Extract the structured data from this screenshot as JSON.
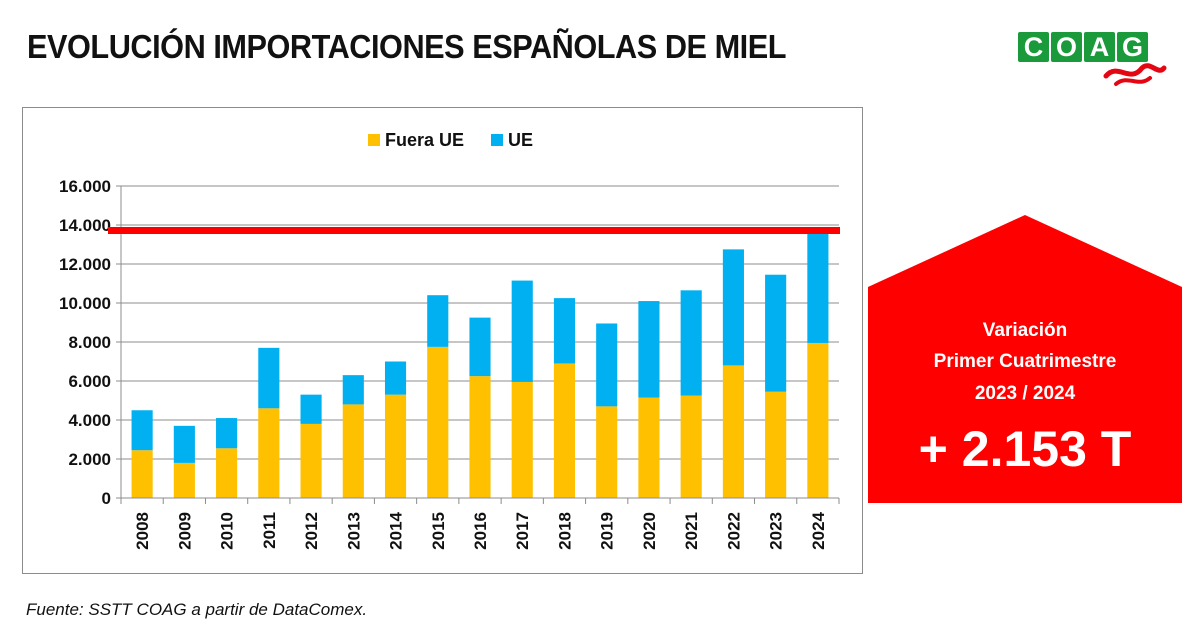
{
  "title": "EVOLUCIÓN IMPORTACIONES ESPAÑOLAS DE MIEL",
  "logo": {
    "text": "COAG",
    "letters": [
      "C",
      "O",
      "A",
      "G"
    ],
    "icon": "coag-logo-icon",
    "color": "#1a9a3a",
    "accent": "#e30613"
  },
  "source": "Fuente: SSTT COAG a partir de DataComex.",
  "callout": {
    "line1": "Variación",
    "line2": "Primer Cuatrimestre",
    "line3": "2023 / 2024",
    "value": "+ 2.153 T",
    "color": "#ff0000"
  },
  "chart_data": {
    "type": "bar",
    "stacked": true,
    "categories": [
      "2008",
      "2009",
      "2010",
      "2011",
      "2012",
      "2013",
      "2014",
      "2015",
      "2016",
      "2017",
      "2018",
      "2019",
      "2020",
      "2021",
      "2022",
      "2023",
      "2024"
    ],
    "series": [
      {
        "name": "Fuera UE",
        "color": "#ffc000",
        "values": [
          2450,
          1800,
          2550,
          4600,
          3800,
          4800,
          5300,
          7750,
          6250,
          5950,
          6900,
          4700,
          5150,
          5250,
          6800,
          5450,
          7950
        ]
      },
      {
        "name": "UE",
        "color": "#00b0f0",
        "values": [
          2050,
          1900,
          1550,
          3100,
          1500,
          1500,
          1700,
          2650,
          3000,
          5200,
          3350,
          4250,
          4950,
          5400,
          5950,
          6000,
          5600
        ]
      }
    ],
    "ylim": [
      0,
      16000
    ],
    "yticks": [
      0,
      2000,
      4000,
      6000,
      8000,
      10000,
      12000,
      14000,
      16000
    ],
    "ytick_labels": [
      "0",
      "2.000",
      "4.000",
      "6.000",
      "8.000",
      "10.000",
      "12.000",
      "14.000",
      "16.000"
    ],
    "reference_line": {
      "value": 13750,
      "color": "#ff0000"
    },
    "legend": "top",
    "grid": true,
    "xlabel": "",
    "ylabel": ""
  }
}
